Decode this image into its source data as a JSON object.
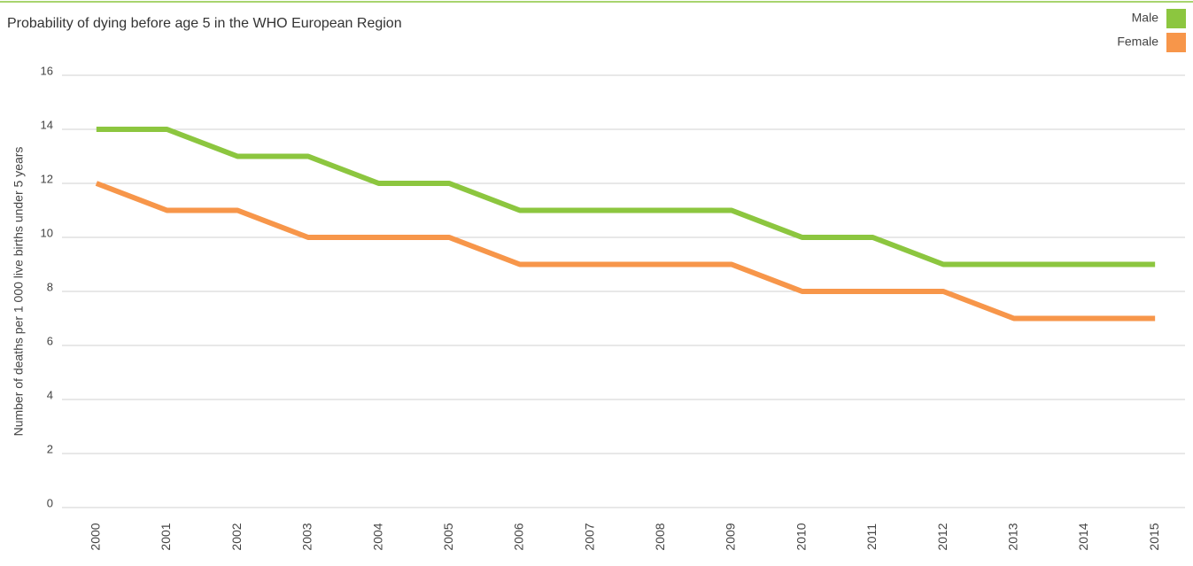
{
  "chart_data": {
    "type": "line",
    "title": "Probability of dying before age 5 in the WHO European Region",
    "y_label": "Number of deaths per 1 000 live births under 5 years",
    "categories": [
      "2000",
      "2001",
      "2002",
      "2003",
      "2004",
      "2005",
      "2006",
      "2007",
      "2008",
      "2009",
      "2010",
      "2011",
      "2012",
      "2013",
      "2014",
      "2015"
    ],
    "series": [
      {
        "name": "Male",
        "color": "#8cc63f",
        "values": [
          14,
          14,
          13,
          13,
          12,
          12,
          11,
          11,
          11,
          11,
          10,
          10,
          9,
          9,
          9,
          9
        ]
      },
      {
        "name": "Female",
        "color": "#f7964a",
        "values": [
          12,
          11,
          11,
          10,
          10,
          10,
          9,
          9,
          9,
          9,
          8,
          8,
          8,
          7,
          7,
          7
        ]
      }
    ],
    "ylim": [
      0,
      16
    ],
    "yticks": [
      0,
      2,
      4,
      6,
      8,
      10,
      12,
      14,
      16
    ],
    "grid": true,
    "legend": "top-right"
  }
}
